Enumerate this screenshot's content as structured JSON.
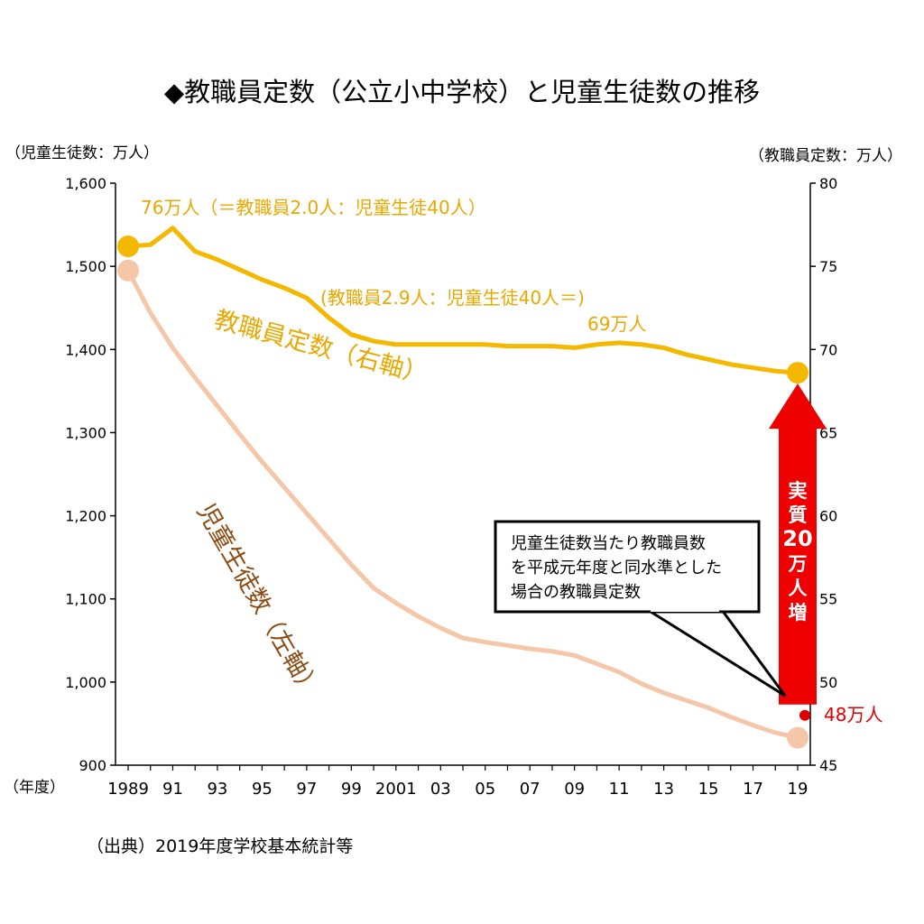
{
  "title": "◆教職員定数（公立小中学校）と児童生徒数の推移",
  "source": "（出典）2019年度学校基本統計等",
  "colors": {
    "teachers": "#F5B800",
    "students": "#F5C6A8",
    "teachers_label": "#E8A800",
    "students_label": "#8B4A10",
    "arrow": "#EE0000",
    "point48": "#E00000"
  },
  "chart_data": {
    "type": "line",
    "title": "◆教職員定数（公立小中学校）と児童生徒数の推移",
    "xlabel": "（年度）",
    "y_left_label": "（児童生徒数：万人）",
    "y_right_label": "（教職員定数：万人）",
    "y_left_lim": [
      900,
      1600
    ],
    "y_right_lim": [
      45,
      80
    ],
    "y_left_ticks": [
      "900",
      "1,000",
      "1,100",
      "1,200",
      "1,300",
      "1,400",
      "1,500",
      "1,600"
    ],
    "y_right_ticks": [
      "45",
      "50",
      "55",
      "60",
      "65",
      "70",
      "75",
      "80"
    ],
    "x_ticks": [
      {
        "year": 1989,
        "label": "1989"
      },
      {
        "year": 1991,
        "label": "91"
      },
      {
        "year": 1993,
        "label": "93"
      },
      {
        "year": 1995,
        "label": "95"
      },
      {
        "year": 1997,
        "label": "97"
      },
      {
        "year": 1999,
        "label": "99"
      },
      {
        "year": 2001,
        "label": "2001"
      },
      {
        "year": 2003,
        "label": "03"
      },
      {
        "year": 2005,
        "label": "05"
      },
      {
        "year": 2007,
        "label": "07"
      },
      {
        "year": 2009,
        "label": "09"
      },
      {
        "year": 2011,
        "label": "11"
      },
      {
        "year": 2013,
        "label": "13"
      },
      {
        "year": 2015,
        "label": "15"
      },
      {
        "year": 2017,
        "label": "17"
      },
      {
        "year": 2019,
        "label": "19"
      }
    ],
    "x": [
      1989,
      1990,
      1991,
      1992,
      1993,
      1994,
      1995,
      1996,
      1997,
      1998,
      1999,
      2000,
      2001,
      2002,
      2003,
      2004,
      2005,
      2006,
      2007,
      2008,
      2009,
      2010,
      2011,
      2012,
      2013,
      2014,
      2015,
      2016,
      2017,
      2018,
      2019
    ],
    "series": [
      {
        "name": "教職員定数（右軸）",
        "axis": "right",
        "values": [
          76.2,
          76.3,
          77.3,
          75.9,
          75.4,
          74.8,
          74.2,
          73.7,
          73.1,
          71.9,
          70.9,
          70.5,
          70.3,
          70.3,
          70.3,
          70.3,
          70.3,
          70.2,
          70.2,
          70.2,
          70.1,
          70.3,
          70.4,
          70.3,
          70.1,
          69.7,
          69.4,
          69.1,
          68.9,
          68.7,
          68.6
        ]
      },
      {
        "name": "児童生徒数（左軸）",
        "axis": "left",
        "values": [
          1495,
          1444,
          1402,
          1366,
          1332,
          1298,
          1265,
          1234,
          1203,
          1172,
          1141,
          1113,
          1095,
          1079,
          1065,
          1053,
          1048,
          1044,
          1040,
          1037,
          1032,
          1022,
          1012,
          998,
          987,
          978,
          969,
          958,
          948,
          939,
          933
        ]
      }
    ],
    "annotations": {
      "teachers_start": "76万人（＝教職員2.0人：児童生徒40人）",
      "teachers_ratio": "(教職員2.9人：児童生徒40人＝)",
      "teachers_end": "69万人",
      "teachers_series_label": "教職員定数（右軸）",
      "students_series_label": "児童生徒数（左軸）",
      "callout_lines": [
        "児童生徒数当たり教職員数",
        "を平成元年度と同水準とした",
        "場合の教職員定数"
      ],
      "point48_label": "48万人",
      "point48_value": 48,
      "arrow_chars": [
        "実",
        "質",
        "20",
        "万",
        "人",
        "増"
      ]
    }
  }
}
